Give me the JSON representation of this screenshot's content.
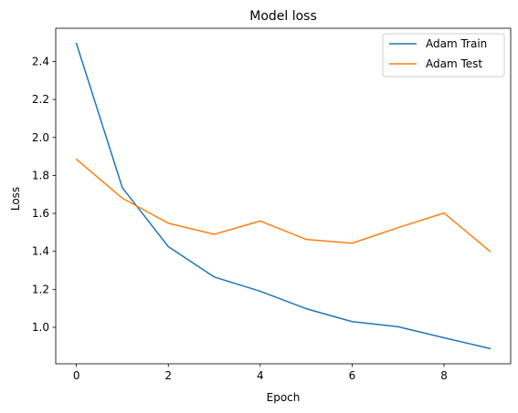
{
  "chart_data": {
    "type": "line",
    "title": "Model loss",
    "xlabel": "Epoch",
    "ylabel": "Loss",
    "x": [
      0,
      1,
      2,
      3,
      4,
      5,
      6,
      7,
      8,
      9
    ],
    "series": [
      {
        "name": "Adam Train",
        "color": "#1f77b4",
        "values": [
          2.495,
          1.735,
          1.425,
          1.265,
          1.19,
          1.098,
          1.03,
          1.003,
          0.945,
          0.888
        ]
      },
      {
        "name": "Adam Test",
        "color": "#ff7f0e",
        "values": [
          1.885,
          1.68,
          1.548,
          1.49,
          1.56,
          1.463,
          1.443,
          1.525,
          1.602,
          1.4
        ]
      }
    ],
    "xlim": [
      -0.45,
      9.45
    ],
    "ylim": [
      0.808,
      2.575
    ],
    "xticks": [
      0,
      2,
      4,
      6,
      8
    ],
    "yticks": [
      1.0,
      1.2,
      1.4,
      1.6,
      1.8,
      2.0,
      2.2,
      2.4
    ],
    "ytick_labels": [
      "1.0",
      "1.2",
      "1.4",
      "1.6",
      "1.8",
      "2.0",
      "2.2",
      "2.4"
    ],
    "grid": false,
    "legend_position": "upper right"
  }
}
